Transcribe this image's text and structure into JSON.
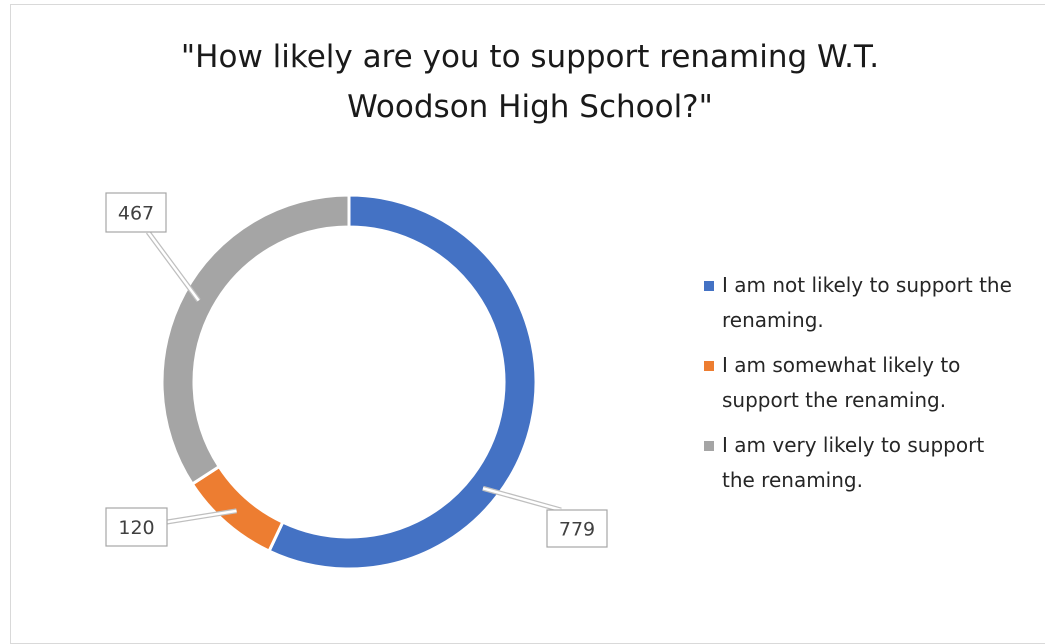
{
  "chart_data": {
    "type": "pie",
    "donut": true,
    "title_lines": [
      "\"How likely are you to support renaming W.T.",
      "Woodson High School?\""
    ],
    "series": [
      {
        "name": "I am not likely to support the renaming.",
        "value": 779,
        "color": "#4472C4",
        "legend_lines": [
          "I am not likely to support the",
          "renaming."
        ]
      },
      {
        "name": "I am somewhat likely to support the renaming.",
        "value": 120,
        "color": "#ED7D31",
        "legend_lines": [
          "I am somewhat likely to",
          "support the renaming."
        ]
      },
      {
        "name": "I am very likely to support the renaming.",
        "value": 467,
        "color": "#A5A5A5",
        "legend_lines": [
          "I am very likely to support",
          "the renaming."
        ]
      }
    ],
    "data_labels": [
      "779",
      "120",
      "467"
    ],
    "legend_position": "right"
  }
}
